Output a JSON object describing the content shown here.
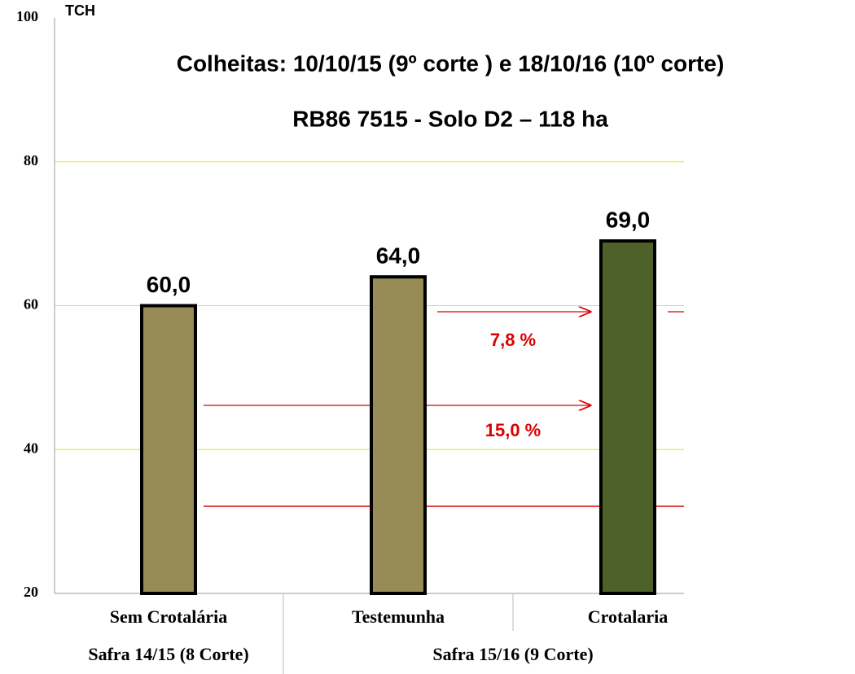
{
  "chart_data": {
    "type": "bar",
    "title": "Colheitas: 10/10/15 (9º corte ) e 18/10/16 (10º corte)",
    "subtitle": "RB86 7515  -  Solo D2 – 118  ha",
    "y_label": "TCH",
    "categories": [
      "Sem Crotalária",
      "Testemunha",
      "Crotalaria"
    ],
    "values": [
      60,
      64,
      69
    ],
    "value_labels": [
      "60,0",
      "64,0",
      "69,0"
    ],
    "colors": [
      "#978c55",
      "#978c55",
      "#4e6129"
    ],
    "group_labels": [
      "Safra 14/15 (8 Corte)",
      "Safra 15/16 (9 Corte)"
    ],
    "annotations": [
      "7,8 %",
      "15,0 %"
    ],
    "ylim": [
      20,
      100
    ],
    "yticks": [
      20,
      40,
      60,
      80,
      100
    ],
    "grid": true
  }
}
